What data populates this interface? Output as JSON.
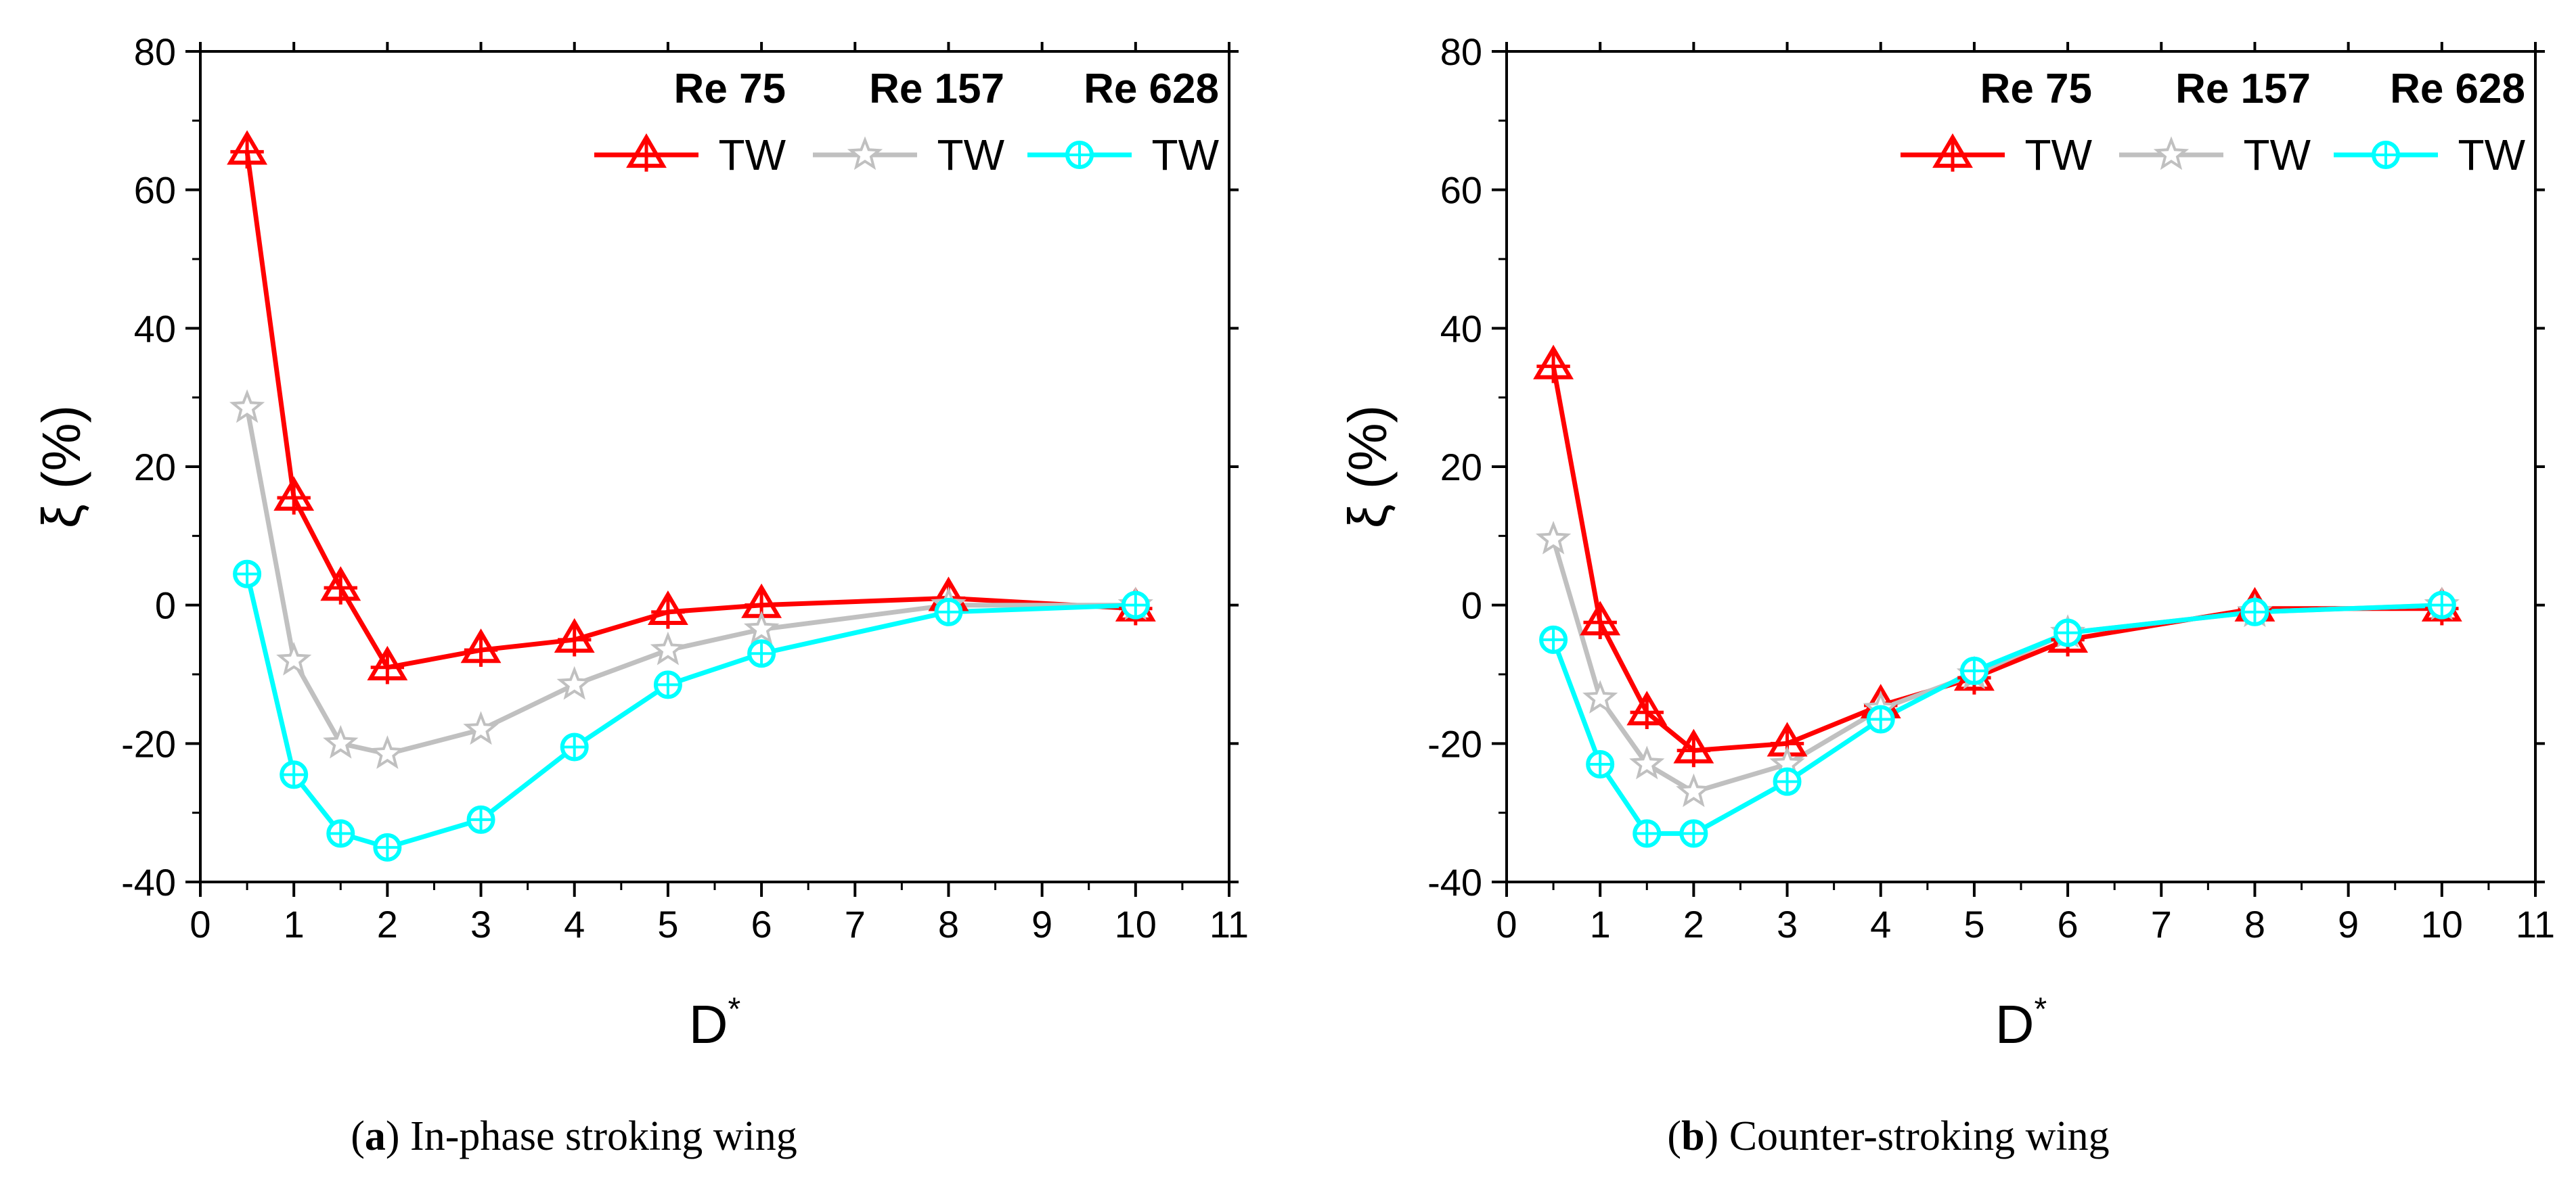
{
  "chart_data": [
    {
      "type": "line",
      "panel": "a",
      "caption_letter": "a",
      "caption_text": "In-phase stroking wing",
      "xlabel": "D",
      "xlabel_sup": "*",
      "ylabel": "ξ (%)",
      "xlim": [
        0,
        11
      ],
      "ylim": [
        -40,
        80
      ],
      "xticks": [
        0,
        1,
        2,
        3,
        4,
        5,
        6,
        7,
        8,
        9,
        10,
        11
      ],
      "yticks": [
        -40,
        -20,
        0,
        20,
        40,
        60,
        80
      ],
      "legend_position": "top-right",
      "series": [
        {
          "name": "Re 75",
          "entry": "TW",
          "color": "#ff0000",
          "marker": "triangle",
          "x": [
            0.5,
            1,
            1.5,
            2,
            3,
            4,
            5,
            6,
            8,
            10
          ],
          "y": [
            65.5,
            15.5,
            2.5,
            -9,
            -6.5,
            -5,
            -1,
            0,
            1,
            -0.5
          ]
        },
        {
          "name": "Re 157",
          "entry": "TW",
          "color": "#c0c0c0",
          "marker": "star",
          "x": [
            0.5,
            1,
            1.5,
            2,
            3,
            4,
            5,
            6,
            8,
            10
          ],
          "y": [
            28.5,
            -8,
            -20,
            -21.5,
            -18,
            -11.5,
            -6.5,
            -3.5,
            0,
            0
          ]
        },
        {
          "name": "Re 628",
          "entry": "TW",
          "color": "#00ffff",
          "marker": "crossed-circle",
          "x": [
            0.5,
            1,
            1.5,
            2,
            3,
            4,
            5,
            6,
            8,
            10
          ],
          "y": [
            4.5,
            -24.5,
            -33,
            -35,
            -31,
            -20.5,
            -11.5,
            -7,
            -1,
            0
          ]
        }
      ]
    },
    {
      "type": "line",
      "panel": "b",
      "caption_letter": "b",
      "caption_text": "Counter-stroking wing",
      "xlabel": "D",
      "xlabel_sup": "*",
      "ylabel": "ξ (%)",
      "xlim": [
        0,
        11
      ],
      "ylim": [
        -40,
        80
      ],
      "xticks": [
        0,
        1,
        2,
        3,
        4,
        5,
        6,
        7,
        8,
        9,
        10,
        11
      ],
      "yticks": [
        -40,
        -20,
        0,
        20,
        40,
        60,
        80
      ],
      "legend_position": "top-right",
      "series": [
        {
          "name": "Re 75",
          "entry": "TW",
          "color": "#ff0000",
          "marker": "triangle",
          "x": [
            0.5,
            1,
            1.5,
            2,
            3,
            4,
            5,
            6,
            8,
            10
          ],
          "y": [
            34.5,
            -2.5,
            -15.5,
            -21,
            -20,
            -14.5,
            -10.5,
            -5,
            -0.5,
            -0.5
          ]
        },
        {
          "name": "Re 157",
          "entry": "TW",
          "color": "#c0c0c0",
          "marker": "star",
          "x": [
            0.5,
            1,
            1.5,
            2,
            3,
            4,
            5,
            6,
            8,
            10
          ],
          "y": [
            9.5,
            -13.5,
            -23,
            -27,
            -23,
            -15,
            -10,
            -4,
            -1,
            0
          ]
        },
        {
          "name": "Re 628",
          "entry": "TW",
          "color": "#00ffff",
          "marker": "crossed-circle",
          "x": [
            0.5,
            1,
            1.5,
            2,
            3,
            4,
            5,
            6,
            8,
            10
          ],
          "y": [
            -5,
            -23,
            -33,
            -33,
            -25.5,
            -16.5,
            -9.5,
            -4,
            -1,
            0
          ]
        }
      ]
    }
  ]
}
